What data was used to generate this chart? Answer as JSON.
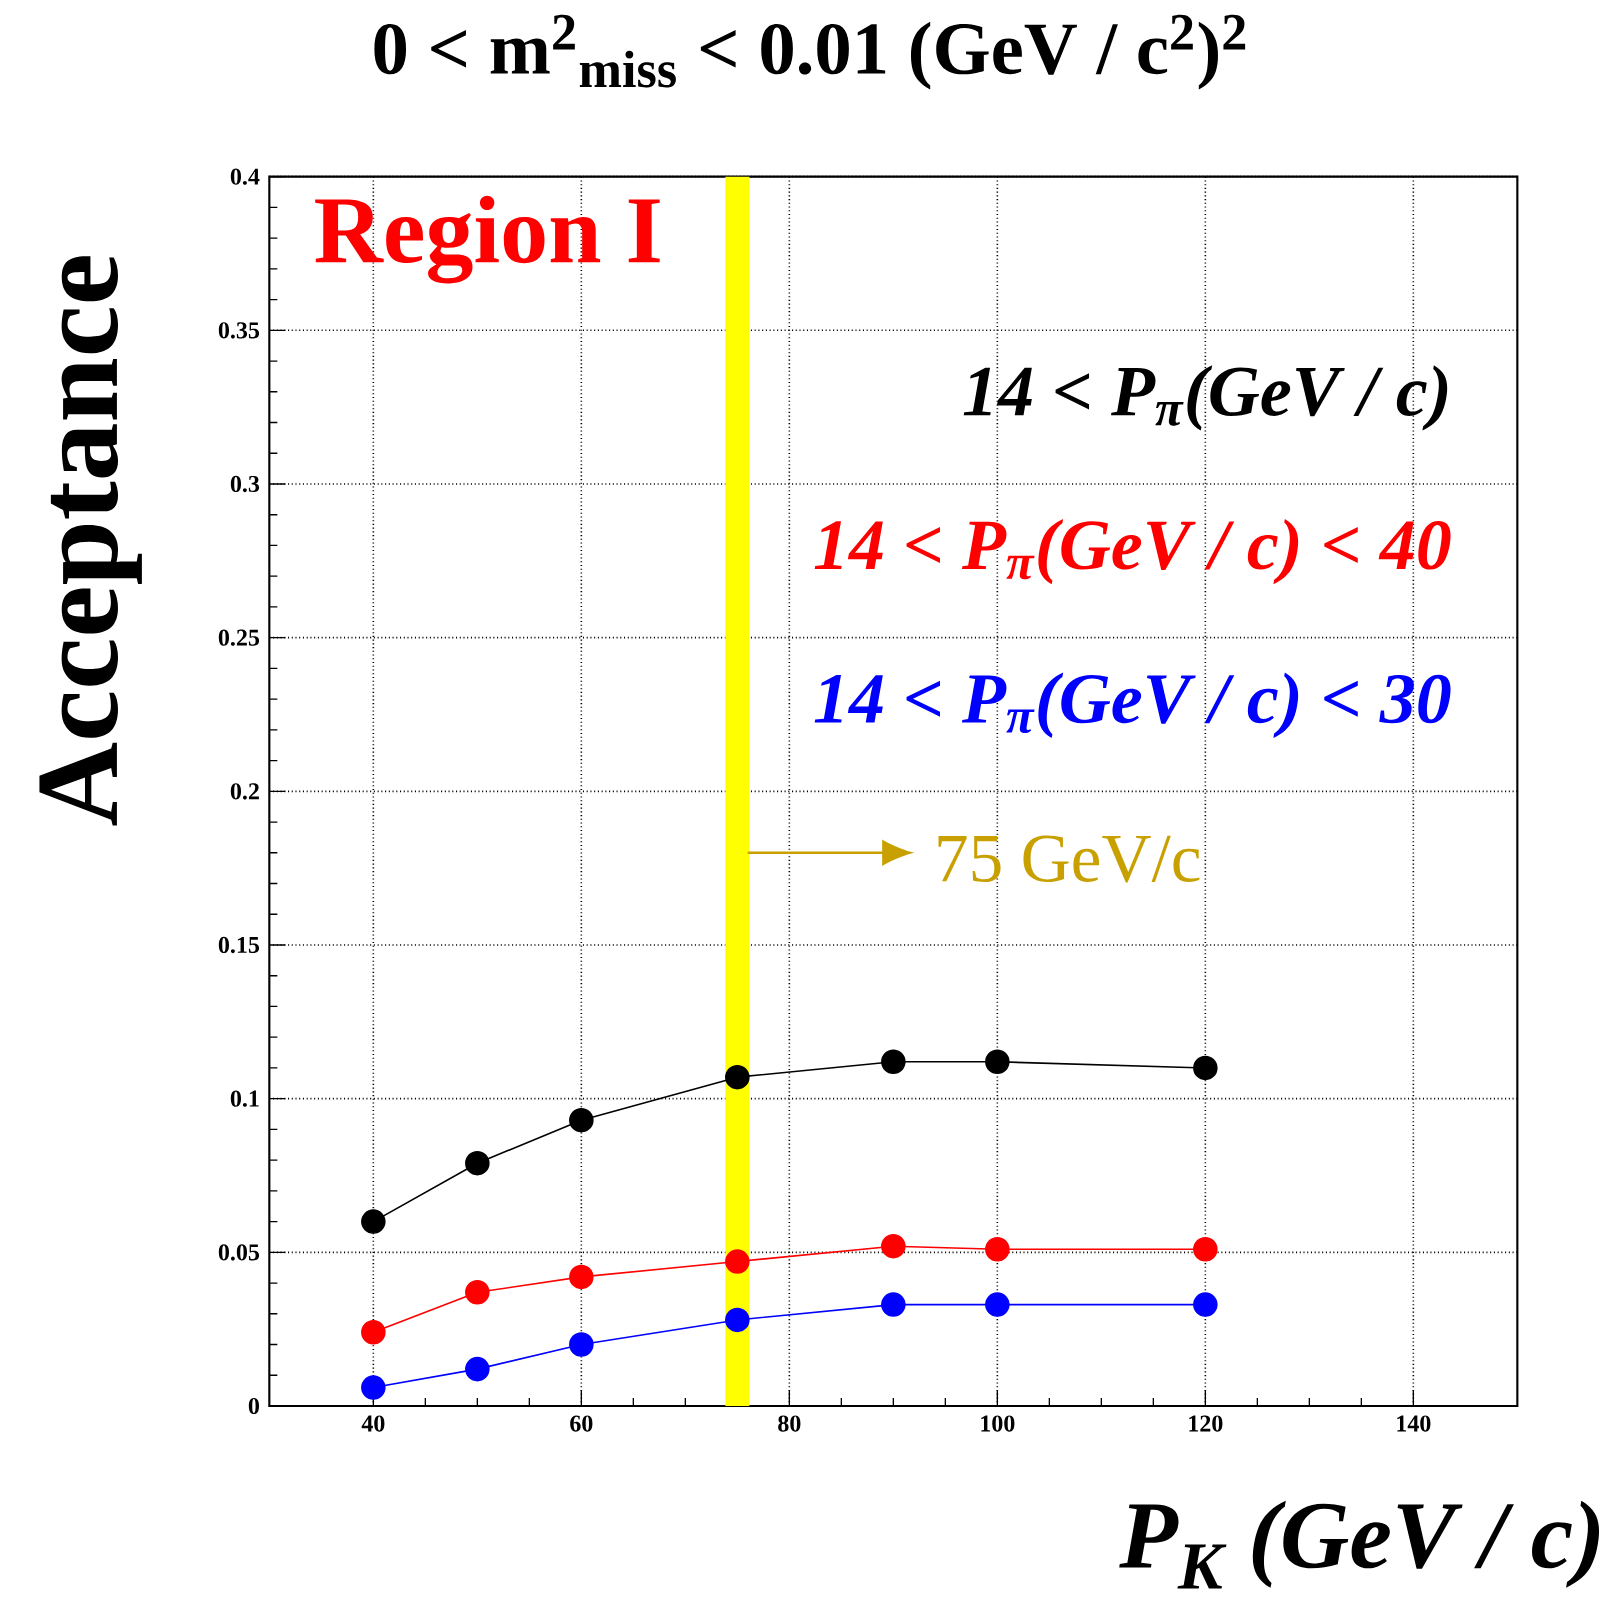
{
  "chart_data": {
    "type": "line",
    "title": "0 < m$^{2}$$_{miss}$ < 0.01  (GeV / c$^{2}$)$^{2}$",
    "xlabel": "P$_{K}$  (GeV / c)",
    "ylabel": "Acceptance",
    "x": [
      40,
      50,
      60,
      75,
      90,
      100,
      120
    ],
    "series": [
      {
        "name": "14 < P$_{π}$(GeV / c)",
        "color": "#000000",
        "values": [
          0.06,
          0.079,
          0.093,
          0.107,
          0.112,
          0.112,
          0.11
        ]
      },
      {
        "name": "14 < P$_{π}$(GeV / c) < 40",
        "color": "#ff0000",
        "values": [
          0.024,
          0.037,
          0.042,
          0.047,
          0.052,
          0.051,
          0.051
        ]
      },
      {
        "name": "14 < P$_{π}$(GeV / c) < 30",
        "color": "#0000ff",
        "values": [
          0.006,
          0.012,
          0.02,
          0.028,
          0.033,
          0.033,
          0.033
        ]
      }
    ],
    "xlim": [
      30,
      150
    ],
    "xticks": [
      40,
      60,
      80,
      100,
      120,
      140
    ],
    "ylim": [
      0,
      0.4
    ],
    "yticks": [
      0,
      0.05,
      0.1,
      0.15,
      0.2,
      0.25,
      0.3,
      0.35,
      0.4
    ],
    "grid": true,
    "legend": "top right",
    "marker": "circle",
    "line_style": "solid",
    "ref_lines": [
      {
        "axis": "x",
        "value": 75,
        "label": "75 GeV/c",
        "color": "#ffff00"
      }
    ],
    "annotations": [
      "Region I"
    ]
  }
}
